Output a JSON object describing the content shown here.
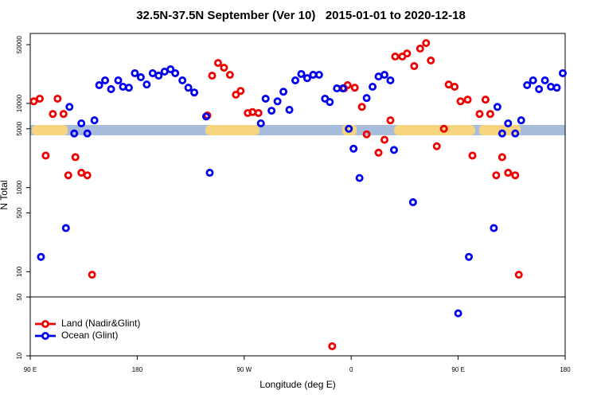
{
  "chart_data": {
    "type": "scatter",
    "title": "32.5N-37.5N September (Ver 10)   2015-01-01 to 2020-12-18",
    "x_label": "Longitude (deg E)",
    "y_label": "N Total",
    "log_y": true,
    "legend": "bottom-left",
    "xlim": [
      90,
      540
    ],
    "xticks": [
      {
        "value": 90,
        "label": "90 E"
      },
      180,
      {
        "value": 270,
        "label": "90 W"
      },
      {
        "value": 360,
        "label": "0"
      },
      {
        "value": 450,
        "label": "90 E"
      },
      {
        "value": 540,
        "label": "180"
      }
    ],
    "ylim": [
      10,
      68000
    ],
    "yticks": [
      10,
      50,
      100,
      500,
      1000,
      5000,
      10000,
      50000
    ],
    "series": [
      {
        "name": "Land (Nadir&Glint)",
        "color": "#ee0000",
        "x": [
          93,
          98,
          103,
          109,
          113,
          118,
          122,
          128,
          133,
          138,
          142,
          239,
          243,
          248,
          253,
          258,
          263,
          267,
          273,
          277,
          282,
          344,
          354,
          357,
          363,
          369,
          373,
          383,
          388,
          393,
          397,
          403,
          407,
          413,
          418,
          423,
          427,
          432,
          438,
          442,
          447,
          452,
          458,
          462,
          468,
          473,
          477,
          482,
          487,
          492,
          498,
          501
        ],
        "values": [
          10600,
          11400,
          2400,
          7500,
          11400,
          7500,
          1400,
          2300,
          1500,
          1400,
          92,
          7200,
          21400,
          30300,
          26600,
          21900,
          12700,
          14100,
          7700,
          7900,
          7700,
          13,
          15100,
          16500,
          15400,
          9100,
          4300,
          2600,
          3700,
          6300,
          36100,
          36100,
          39300,
          27800,
          44900,
          52200,
          32400,
          3100,
          5000,
          16800,
          15800,
          10600,
          11100,
          2400,
          7500,
          11100,
          7500,
          1400,
          2300,
          1500,
          1400,
          92
        ]
      },
      {
        "name": "Ocean (Glint)",
        "color": "#0000ee",
        "x": [
          99,
          120,
          123,
          127,
          133,
          138,
          144,
          148,
          153,
          158,
          164,
          168,
          173,
          178,
          183,
          188,
          193,
          198,
          203,
          208,
          212,
          218,
          223,
          228,
          238,
          241,
          284,
          288,
          293,
          298,
          303,
          308,
          313,
          318,
          323,
          328,
          333,
          338,
          342,
          348,
          353,
          358,
          362,
          367,
          373,
          378,
          383,
          388,
          393,
          396,
          412,
          450,
          459,
          480,
          483,
          487,
          492,
          498,
          503,
          508,
          513,
          518,
          523,
          528,
          533,
          538
        ],
        "values": [
          150,
          330,
          9100,
          4400,
          5800,
          4400,
          6300,
          16500,
          18800,
          14800,
          18800,
          15800,
          15400,
          22900,
          20500,
          16800,
          22900,
          21400,
          23900,
          25500,
          22900,
          18800,
          15400,
          13500,
          7000,
          1500,
          5800,
          11400,
          8200,
          10600,
          13800,
          8400,
          18800,
          22400,
          20000,
          21900,
          21900,
          11400,
          10400,
          15100,
          15100,
          5000,
          2900,
          1300,
          11600,
          15800,
          20900,
          21900,
          18800,
          2800,
          670,
          32,
          150,
          330,
          9100,
          4400,
          5800,
          4400,
          6300,
          16500,
          18800,
          14800,
          18800,
          15800,
          15400,
          22900
        ]
      }
    ]
  }
}
